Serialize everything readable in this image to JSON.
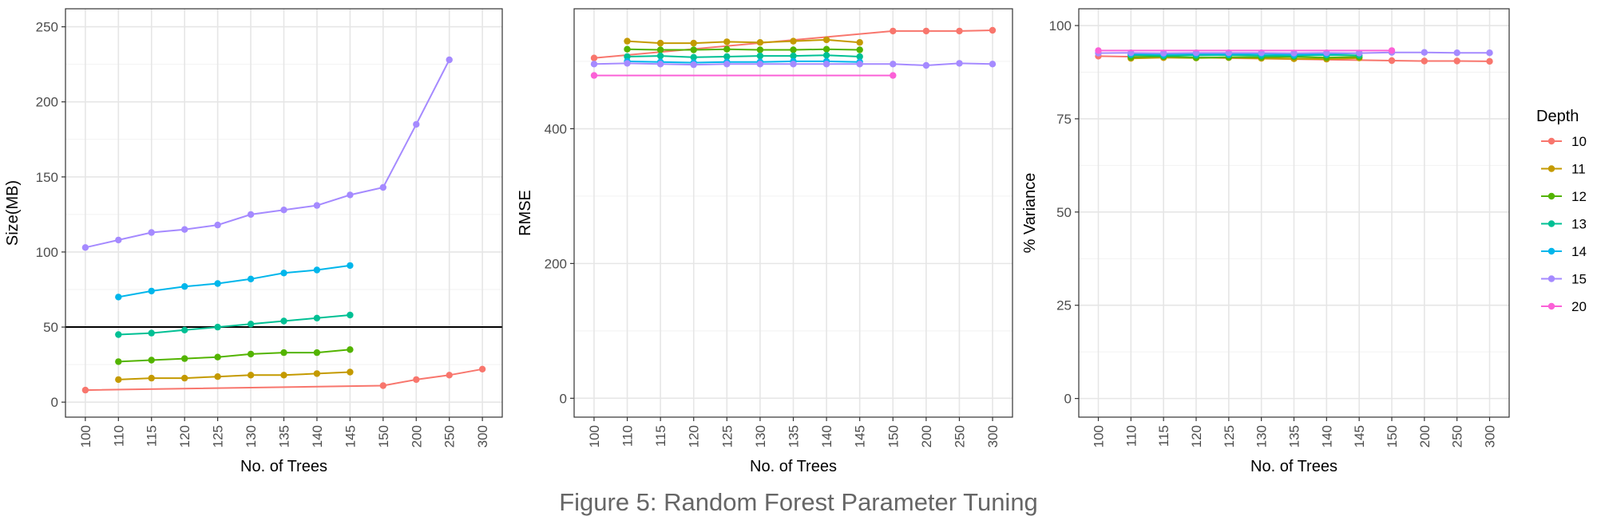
{
  "caption": "Figure 5: Random Forest Parameter Tuning",
  "legend": {
    "title": "Depth",
    "entries": [
      {
        "label": "10",
        "color": "#F8766D"
      },
      {
        "label": "11",
        "color": "#C49A00"
      },
      {
        "label": "12",
        "color": "#53B400"
      },
      {
        "label": "13",
        "color": "#00C094"
      },
      {
        "label": "14",
        "color": "#00B6EB"
      },
      {
        "label": "15",
        "color": "#A58AFF"
      },
      {
        "label": "20",
        "color": "#FB61D7"
      }
    ]
  },
  "chart_data": [
    {
      "type": "line",
      "xlabel": "No. of Trees",
      "ylabel": "Size(MB)",
      "categories": [
        "100",
        "110",
        "115",
        "120",
        "125",
        "130",
        "135",
        "140",
        "145",
        "150",
        "200",
        "250",
        "300"
      ],
      "ylim": [
        -10,
        262
      ],
      "yticks": [
        0,
        50,
        100,
        150,
        200,
        250
      ],
      "hline": {
        "y": 50,
        "color": "#000000"
      },
      "grid": true,
      "series": [
        {
          "name": "10",
          "x": [
            "100",
            "150",
            "200",
            "250",
            "300"
          ],
          "values": [
            8,
            11,
            15,
            18,
            22
          ]
        },
        {
          "name": "11",
          "x": [
            "110",
            "115",
            "120",
            "125",
            "130",
            "135",
            "140",
            "145"
          ],
          "values": [
            15,
            16,
            16,
            17,
            18,
            18,
            19,
            20
          ]
        },
        {
          "name": "12",
          "x": [
            "110",
            "115",
            "120",
            "125",
            "130",
            "135",
            "140",
            "145"
          ],
          "values": [
            27,
            28,
            29,
            30,
            32,
            33,
            33,
            35
          ]
        },
        {
          "name": "13",
          "x": [
            "110",
            "115",
            "120",
            "125",
            "130",
            "135",
            "140",
            "145"
          ],
          "values": [
            45,
            46,
            48,
            50,
            52,
            54,
            56,
            58
          ]
        },
        {
          "name": "14",
          "x": [
            "110",
            "115",
            "120",
            "125",
            "130",
            "135",
            "140",
            "145"
          ],
          "values": [
            70,
            74,
            77,
            79,
            82,
            86,
            88,
            91
          ]
        },
        {
          "name": "15",
          "x": [
            "100",
            "110",
            "115",
            "120",
            "125",
            "130",
            "135",
            "140",
            "145",
            "150",
            "200",
            "250"
          ],
          "values": [
            103,
            108,
            113,
            115,
            118,
            125,
            128,
            131,
            138,
            143,
            185,
            228
          ]
        }
      ]
    },
    {
      "type": "line",
      "xlabel": "No. of Trees",
      "ylabel": "RMSE",
      "categories": [
        "100",
        "110",
        "115",
        "120",
        "125",
        "130",
        "135",
        "140",
        "145",
        "150",
        "200",
        "250",
        "300"
      ],
      "ylim": [
        -28,
        578
      ],
      "yticks": [
        0,
        200,
        400
      ],
      "grid": true,
      "series": [
        {
          "name": "10",
          "x": [
            "100",
            "150",
            "200",
            "250",
            "300"
          ],
          "values": [
            505,
            545,
            545,
            545,
            546
          ]
        },
        {
          "name": "11",
          "x": [
            "110",
            "115",
            "120",
            "125",
            "130",
            "135",
            "140",
            "145"
          ],
          "values": [
            530,
            527,
            527,
            529,
            528,
            530,
            532,
            528
          ]
        },
        {
          "name": "12",
          "x": [
            "110",
            "115",
            "120",
            "125",
            "130",
            "135",
            "140",
            "145"
          ],
          "values": [
            518,
            517,
            517,
            518,
            517,
            517,
            518,
            517
          ]
        },
        {
          "name": "13",
          "x": [
            "110",
            "115",
            "120",
            "125",
            "130",
            "135",
            "140",
            "145"
          ],
          "values": [
            507,
            508,
            506,
            507,
            508,
            508,
            509,
            507
          ]
        },
        {
          "name": "14",
          "x": [
            "110",
            "115",
            "120",
            "125",
            "130",
            "135",
            "140",
            "145"
          ],
          "values": [
            500,
            499,
            498,
            499,
            499,
            500,
            500,
            499
          ]
        },
        {
          "name": "15",
          "x": [
            "100",
            "110",
            "115",
            "120",
            "125",
            "130",
            "135",
            "140",
            "145",
            "150",
            "200",
            "250",
            "300"
          ],
          "values": [
            496,
            497,
            496,
            495,
            496,
            496,
            496,
            496,
            496,
            496,
            494,
            497,
            496
          ]
        },
        {
          "name": "20",
          "x": [
            "100",
            "150"
          ],
          "values": [
            479,
            479
          ]
        }
      ]
    },
    {
      "type": "line",
      "xlabel": "No. of Trees",
      "ylabel": "% Variance",
      "categories": [
        "100",
        "110",
        "115",
        "120",
        "125",
        "130",
        "135",
        "140",
        "145",
        "150",
        "200",
        "250",
        "300"
      ],
      "ylim": [
        -5,
        104.5
      ],
      "yticks": [
        0,
        25,
        50,
        75,
        100
      ],
      "grid": true,
      "series": [
        {
          "name": "10",
          "x": [
            "100",
            "150",
            "200",
            "250",
            "300"
          ],
          "values": [
            91.8,
            90.6,
            90.5,
            90.5,
            90.4
          ]
        },
        {
          "name": "11",
          "x": [
            "110",
            "115",
            "120",
            "125",
            "130",
            "135",
            "140",
            "145"
          ],
          "values": [
            91.2,
            91.4,
            91.3,
            91.4,
            91.2,
            91.1,
            91.0,
            91.3
          ]
        },
        {
          "name": "12",
          "x": [
            "110",
            "115",
            "120",
            "125",
            "130",
            "135",
            "140",
            "145"
          ],
          "values": [
            91.5,
            91.7,
            91.4,
            91.5,
            91.5,
            91.6,
            91.4,
            91.6
          ]
        },
        {
          "name": "13",
          "x": [
            "110",
            "115",
            "120",
            "125",
            "130",
            "135",
            "140",
            "145"
          ],
          "values": [
            92.1,
            91.9,
            92.0,
            92.1,
            91.9,
            91.9,
            92.1,
            92.0
          ]
        },
        {
          "name": "14",
          "x": [
            "110",
            "115",
            "120",
            "125",
            "130",
            "135",
            "140",
            "145"
          ],
          "values": [
            92.4,
            92.3,
            92.4,
            92.3,
            92.4,
            92.2,
            92.4,
            92.6
          ]
        },
        {
          "name": "15",
          "x": [
            "100",
            "110",
            "115",
            "120",
            "125",
            "130",
            "135",
            "140",
            "145",
            "150",
            "200",
            "250",
            "300"
          ],
          "values": [
            92.6,
            92.7,
            92.6,
            92.7,
            92.7,
            92.7,
            92.6,
            92.7,
            92.6,
            92.8,
            92.8,
            92.7,
            92.7
          ]
        },
        {
          "name": "20",
          "x": [
            "100",
            "150"
          ],
          "values": [
            93.3,
            93.3
          ]
        }
      ]
    }
  ]
}
